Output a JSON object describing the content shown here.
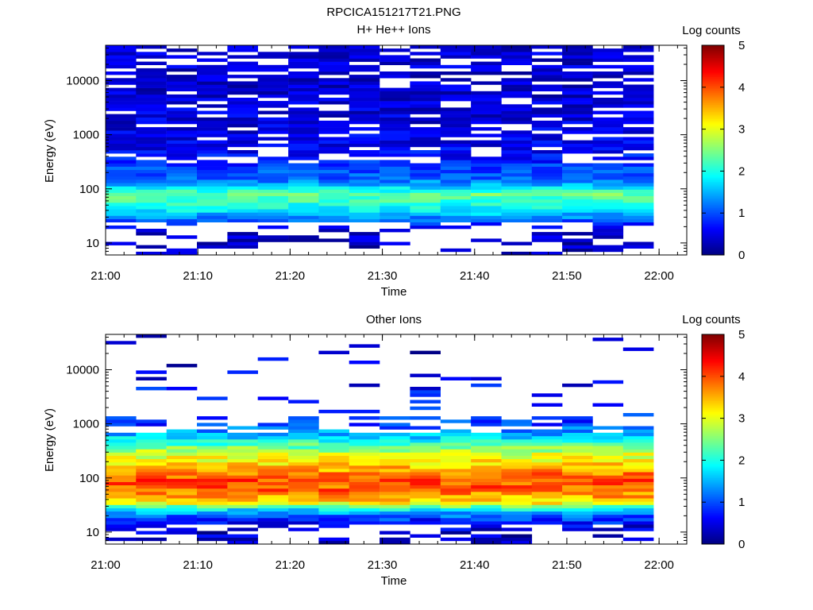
{
  "figure_title": "RPCICA151217T21.PNG",
  "chart_data": [
    {
      "type": "heatmap",
      "title": "H+ He++ Ions",
      "xlabel": "Time",
      "ylabel": "Energy (eV)",
      "x_ticks": [
        "21:00",
        "21:10",
        "21:20",
        "21:30",
        "21:40",
        "21:50",
        "22:00"
      ],
      "x_range": [
        "21:00",
        "22:03"
      ],
      "y_scale": "log",
      "y_ticks": [
        "10",
        "100",
        "1000",
        "10000"
      ],
      "y_range": [
        6,
        45000
      ],
      "colorbar": {
        "label": "Log counts",
        "ticks": [
          "0",
          "1",
          "2",
          "3",
          "4",
          "5"
        ],
        "range": [
          0,
          5
        ],
        "colormap": "jet"
      },
      "profile": "proton",
      "energy_levels": [
        {
          "energy": 9,
          "log_counts": 0.3
        },
        {
          "energy": 13,
          "log_counts": 0.4
        },
        {
          "energy": 19,
          "log_counts": 0.5
        },
        {
          "energy": 28,
          "log_counts": 1.2
        },
        {
          "energy": 40,
          "log_counts": 1.8
        },
        {
          "energy": 55,
          "log_counts": 2.1
        },
        {
          "energy": 80,
          "log_counts": 2.4
        },
        {
          "energy": 110,
          "log_counts": 1.6
        },
        {
          "energy": 160,
          "log_counts": 1.1
        },
        {
          "energy": 250,
          "log_counts": 0.9
        },
        {
          "energy": 500,
          "log_counts": 0.6
        },
        {
          "energy": 1000,
          "log_counts": 0.5
        },
        {
          "energy": 5000,
          "log_counts": 0.4
        },
        {
          "energy": 30000,
          "log_counts": 0.4
        }
      ]
    },
    {
      "type": "heatmap",
      "title": "Other Ions",
      "xlabel": "Time",
      "ylabel": "Energy (eV)",
      "x_ticks": [
        "21:00",
        "21:10",
        "21:20",
        "21:30",
        "21:40",
        "21:50",
        "22:00"
      ],
      "x_range": [
        "21:00",
        "22:03"
      ],
      "y_scale": "log",
      "y_ticks": [
        "10",
        "100",
        "1000",
        "10000"
      ],
      "y_range": [
        6,
        45000
      ],
      "colorbar": {
        "label": "Log counts",
        "ticks": [
          "0",
          "1",
          "2",
          "3",
          "4",
          "5"
        ],
        "range": [
          0,
          5
        ],
        "colormap": "jet"
      },
      "profile": "heavy",
      "energy_levels": [
        {
          "energy": 8,
          "log_counts": 0.3
        },
        {
          "energy": 12,
          "log_counts": 0.4
        },
        {
          "energy": 18,
          "log_counts": 0.9
        },
        {
          "energy": 25,
          "log_counts": 1.6
        },
        {
          "energy": 35,
          "log_counts": 3.2
        },
        {
          "energy": 60,
          "log_counts": 3.9
        },
        {
          "energy": 100,
          "log_counts": 4.0
        },
        {
          "energy": 160,
          "log_counts": 3.4
        },
        {
          "energy": 300,
          "log_counts": 2.8
        },
        {
          "energy": 600,
          "log_counts": 1.6
        },
        {
          "energy": 1000,
          "log_counts": 0.9
        },
        {
          "energy": 10000,
          "log_counts": 0.5
        },
        {
          "energy": 25000,
          "log_counts": 0.4
        }
      ]
    }
  ]
}
